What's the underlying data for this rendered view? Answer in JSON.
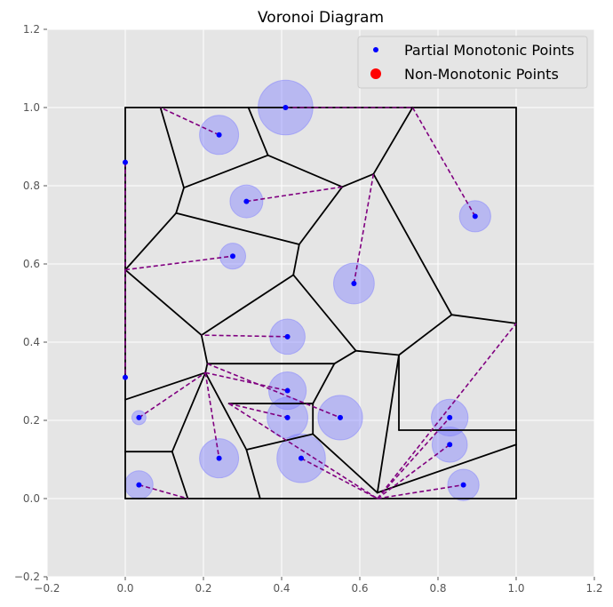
{
  "chart_data": {
    "type": "scatter",
    "title": "Voronoi Diagram",
    "xlabel": "",
    "ylabel": "",
    "xlim": [
      -0.2,
      1.2
    ],
    "ylim": [
      -0.2,
      1.2
    ],
    "xticks": [
      -0.2,
      0.0,
      0.2,
      0.4,
      0.6,
      0.8,
      1.0,
      1.2
    ],
    "yticks": [
      -0.2,
      0.0,
      0.2,
      0.4,
      0.6,
      0.8,
      1.0,
      1.2
    ],
    "xtick_labels": [
      "−0.2",
      "0.0",
      "0.2",
      "0.4",
      "0.6",
      "0.8",
      "1.0",
      "1.2"
    ],
    "ytick_labels": [
      "−0.2",
      "0.0",
      "0.2",
      "0.4",
      "0.6",
      "0.8",
      "1.0",
      "1.2"
    ],
    "grid": true,
    "legend_position": "top-right",
    "colors": {
      "background": "#e5e5e5",
      "grid": "#ffffff",
      "points": "#0000ff",
      "circles": "#8080ff",
      "edges": "#000000",
      "links": "#800080",
      "non_monotonic": "#ff0000"
    },
    "legend": [
      {
        "label": "Partial Monotonic Points",
        "color": "#0000ff",
        "marker": "small-dot"
      },
      {
        "label": "Non-Monotonic Points",
        "color": "#ff0000",
        "marker": "large-dot"
      }
    ],
    "points": [
      {
        "x": 0.41,
        "y": 1.0,
        "radius": 0.07
      },
      {
        "x": 0.24,
        "y": 0.93,
        "radius": 0.05
      },
      {
        "x": 0.0,
        "y": 0.86,
        "radius": 0
      },
      {
        "x": 0.31,
        "y": 0.76,
        "radius": 0.042
      },
      {
        "x": 0.895,
        "y": 0.722,
        "radius": 0.04
      },
      {
        "x": 0.275,
        "y": 0.62,
        "radius": 0.033
      },
      {
        "x": 0.585,
        "y": 0.55,
        "radius": 0.052
      },
      {
        "x": 0.415,
        "y": 0.414,
        "radius": 0.045
      },
      {
        "x": 0.0,
        "y": 0.31,
        "radius": 0
      },
      {
        "x": 0.415,
        "y": 0.276,
        "radius": 0.048
      },
      {
        "x": 0.035,
        "y": 0.207,
        "radius": 0.018
      },
      {
        "x": 0.415,
        "y": 0.207,
        "radius": 0.052
      },
      {
        "x": 0.55,
        "y": 0.207,
        "radius": 0.057
      },
      {
        "x": 0.83,
        "y": 0.207,
        "radius": 0.047
      },
      {
        "x": 0.83,
        "y": 0.138,
        "radius": 0.045
      },
      {
        "x": 0.24,
        "y": 0.103,
        "radius": 0.05
      },
      {
        "x": 0.45,
        "y": 0.103,
        "radius": 0.062
      },
      {
        "x": 0.035,
        "y": 0.035,
        "radius": 0.036
      },
      {
        "x": 0.865,
        "y": 0.035,
        "radius": 0.04
      }
    ],
    "voronoi_edges": [
      [
        [
          0.0,
          0.0
        ],
        [
          1.0,
          0.0
        ]
      ],
      [
        [
          1.0,
          0.0
        ],
        [
          1.0,
          1.0
        ]
      ],
      [
        [
          1.0,
          1.0
        ],
        [
          0.0,
          1.0
        ]
      ],
      [
        [
          0.0,
          1.0
        ],
        [
          0.0,
          0.0
        ]
      ],
      [
        [
          0.09,
          1.0
        ],
        [
          0.15,
          0.795
        ]
      ],
      [
        [
          0.15,
          0.795
        ],
        [
          0.365,
          0.878
        ]
      ],
      [
        [
          0.365,
          0.878
        ],
        [
          0.315,
          1.0
        ]
      ],
      [
        [
          0.15,
          0.795
        ],
        [
          0.13,
          0.73
        ]
      ],
      [
        [
          0.13,
          0.73
        ],
        [
          0.0,
          0.585
        ]
      ],
      [
        [
          0.13,
          0.73
        ],
        [
          0.445,
          0.65
        ]
      ],
      [
        [
          0.365,
          0.878
        ],
        [
          0.555,
          0.797
        ]
      ],
      [
        [
          0.555,
          0.797
        ],
        [
          0.445,
          0.65
        ]
      ],
      [
        [
          0.445,
          0.65
        ],
        [
          0.43,
          0.572
        ]
      ],
      [
        [
          0.555,
          0.797
        ],
        [
          0.635,
          0.83
        ]
      ],
      [
        [
          0.635,
          0.83
        ],
        [
          0.735,
          1.0
        ]
      ],
      [
        [
          0.635,
          0.83
        ],
        [
          0.835,
          0.47
        ]
      ],
      [
        [
          0.835,
          0.47
        ],
        [
          1.0,
          0.448
        ]
      ],
      [
        [
          0.835,
          0.47
        ],
        [
          0.7,
          0.367
        ]
      ],
      [
        [
          0.0,
          0.585
        ],
        [
          0.195,
          0.418
        ]
      ],
      [
        [
          0.195,
          0.418
        ],
        [
          0.43,
          0.572
        ]
      ],
      [
        [
          0.43,
          0.572
        ],
        [
          0.59,
          0.378
        ]
      ],
      [
        [
          0.59,
          0.378
        ],
        [
          0.7,
          0.367
        ]
      ],
      [
        [
          0.59,
          0.378
        ],
        [
          0.535,
          0.345
        ]
      ],
      [
        [
          0.195,
          0.418
        ],
        [
          0.21,
          0.345
        ]
      ],
      [
        [
          0.21,
          0.345
        ],
        [
          0.535,
          0.345
        ]
      ],
      [
        [
          0.21,
          0.345
        ],
        [
          0.205,
          0.322
        ]
      ],
      [
        [
          0.205,
          0.322
        ],
        [
          0.0,
          0.253
        ]
      ],
      [
        [
          0.205,
          0.322
        ],
        [
          0.12,
          0.12
        ]
      ],
      [
        [
          0.12,
          0.12
        ],
        [
          0.0,
          0.12
        ]
      ],
      [
        [
          0.12,
          0.12
        ],
        [
          0.16,
          0.0
        ]
      ],
      [
        [
          0.205,
          0.322
        ],
        [
          0.31,
          0.125
        ]
      ],
      [
        [
          0.31,
          0.125
        ],
        [
          0.345,
          0.0
        ]
      ],
      [
        [
          0.31,
          0.125
        ],
        [
          0.48,
          0.165
        ]
      ],
      [
        [
          0.265,
          0.243
        ],
        [
          0.48,
          0.243
        ]
      ],
      [
        [
          0.48,
          0.243
        ],
        [
          0.48,
          0.165
        ]
      ],
      [
        [
          0.535,
          0.345
        ],
        [
          0.48,
          0.243
        ]
      ],
      [
        [
          0.48,
          0.165
        ],
        [
          0.645,
          0.015
        ]
      ],
      [
        [
          0.645,
          0.015
        ],
        [
          0.7,
          0.367
        ]
      ],
      [
        [
          0.7,
          0.367
        ],
        [
          0.7,
          0.175
        ]
      ],
      [
        [
          0.7,
          0.175
        ],
        [
          1.0,
          0.175
        ]
      ],
      [
        [
          0.645,
          0.015
        ],
        [
          1.0,
          0.138
        ]
      ]
    ],
    "links": [
      [
        [
          0.41,
          1.0
        ],
        [
          0.735,
          1.0
        ]
      ],
      [
        [
          0.735,
          1.0
        ],
        [
          0.895,
          0.722
        ]
      ],
      [
        [
          0.24,
          0.93
        ],
        [
          0.09,
          1.0
        ]
      ],
      [
        [
          0.0,
          0.86
        ],
        [
          0.0,
          0.585
        ]
      ],
      [
        [
          0.0,
          0.585
        ],
        [
          0.0,
          0.31
        ]
      ],
      [
        [
          0.0,
          0.585
        ],
        [
          0.275,
          0.62
        ]
      ],
      [
        [
          0.31,
          0.76
        ],
        [
          0.555,
          0.797
        ]
      ],
      [
        [
          0.585,
          0.55
        ],
        [
          0.635,
          0.83
        ]
      ],
      [
        [
          0.415,
          0.414
        ],
        [
          0.195,
          0.418
        ]
      ],
      [
        [
          0.035,
          0.207
        ],
        [
          0.205,
          0.322
        ]
      ],
      [
        [
          0.205,
          0.322
        ],
        [
          0.415,
          0.276
        ]
      ],
      [
        [
          0.205,
          0.322
        ],
        [
          0.24,
          0.103
        ]
      ],
      [
        [
          0.21,
          0.345
        ],
        [
          0.55,
          0.207
        ]
      ],
      [
        [
          0.265,
          0.243
        ],
        [
          0.415,
          0.207
        ]
      ],
      [
        [
          0.265,
          0.243
        ],
        [
          0.645,
          0.0
        ]
      ],
      [
        [
          0.035,
          0.035
        ],
        [
          0.16,
          0.0
        ]
      ],
      [
        [
          0.45,
          0.103
        ],
        [
          0.645,
          0.0
        ]
      ],
      [
        [
          0.645,
          0.0
        ],
        [
          0.83,
          0.207
        ]
      ],
      [
        [
          0.645,
          0.0
        ],
        [
          0.83,
          0.138
        ]
      ],
      [
        [
          0.645,
          0.0
        ],
        [
          0.865,
          0.035
        ]
      ],
      [
        [
          0.645,
          0.0
        ],
        [
          1.0,
          0.448
        ]
      ]
    ]
  }
}
